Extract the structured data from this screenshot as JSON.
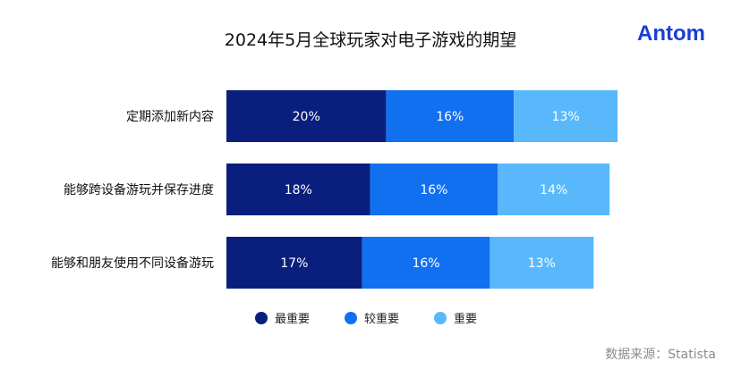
{
  "title": "2024年5月全球玩家对电子游戏的期望",
  "logo_text": "Antom",
  "source": "数据来源：Statista",
  "chart_data": {
    "type": "bar",
    "orientation": "horizontal",
    "stacked": true,
    "title": "2024年5月全球玩家对电子游戏的期望",
    "categories": [
      "定期添加新内容",
      "能够跨设备游玩并保存进度",
      "能够和朋友使用不同设备游玩"
    ],
    "series": [
      {
        "name": "最重要",
        "color": "#0a1f7d",
        "values": [
          20,
          18,
          17
        ],
        "labels": [
          "20%",
          "18%",
          "17%"
        ]
      },
      {
        "name": "较重要",
        "color": "#1170f0",
        "values": [
          16,
          16,
          16
        ],
        "labels": [
          "16%",
          "16%",
          "16%"
        ]
      },
      {
        "name": "重要",
        "color": "#58b8fb",
        "values": [
          13,
          14,
          13
        ],
        "labels": [
          "13%",
          "14%",
          "13%"
        ]
      }
    ],
    "unit": "%",
    "legend_position": "bottom",
    "grid": false
  }
}
